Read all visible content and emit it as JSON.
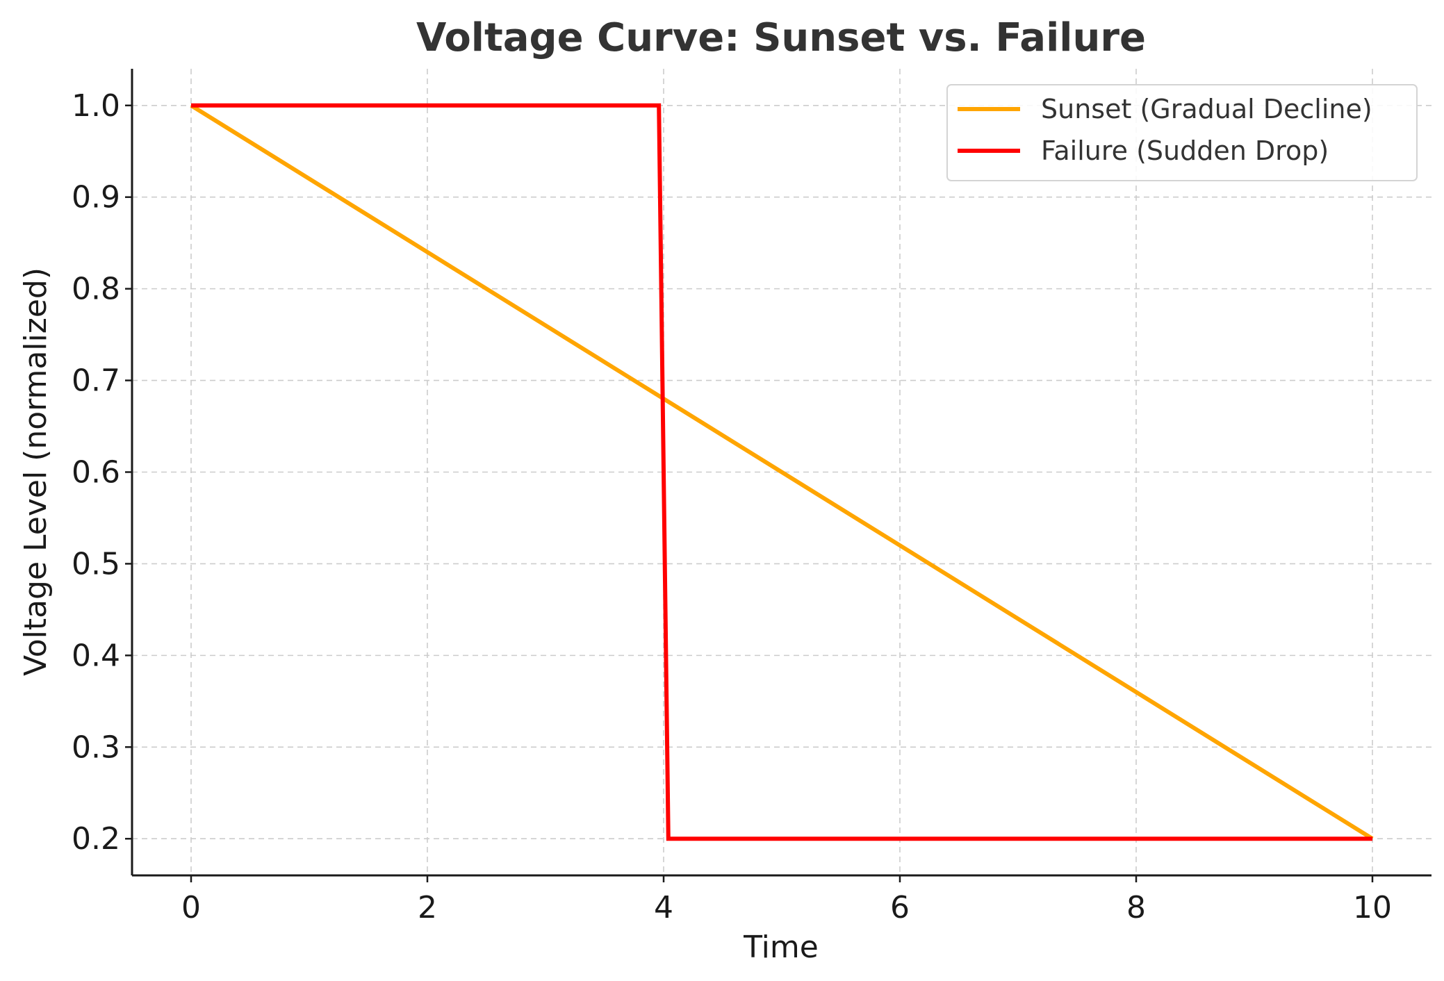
{
  "chart_data": {
    "type": "line",
    "title": "Voltage Curve: Sunset vs. Failure",
    "xlabel": "Time",
    "ylabel": "Voltage Level (normalized)",
    "xlim": [
      -0.5,
      10.5
    ],
    "ylim": [
      0.16,
      1.04
    ],
    "xticks": [
      0,
      2,
      4,
      6,
      8,
      10
    ],
    "xtick_labels": [
      "0",
      "2",
      "4",
      "6",
      "8",
      "10"
    ],
    "yticks": [
      0.2,
      0.3,
      0.4,
      0.5,
      0.6,
      0.7,
      0.8,
      0.9,
      1.0
    ],
    "ytick_labels": [
      "0.2",
      "0.3",
      "0.4",
      "0.5",
      "0.6",
      "0.7",
      "0.8",
      "0.9",
      "1.0"
    ],
    "grid": true,
    "legend_position": "top-right",
    "series": [
      {
        "name": "Sunset (Gradual Decline)",
        "color": "#FFA500",
        "x": [
          0,
          10
        ],
        "y": [
          1.0,
          0.2
        ]
      },
      {
        "name": "Failure (Sudden Drop)",
        "color": "#FF0000",
        "x": [
          0,
          3.96,
          4.04,
          10
        ],
        "y": [
          1.0,
          1.0,
          0.2,
          0.2
        ]
      }
    ]
  }
}
